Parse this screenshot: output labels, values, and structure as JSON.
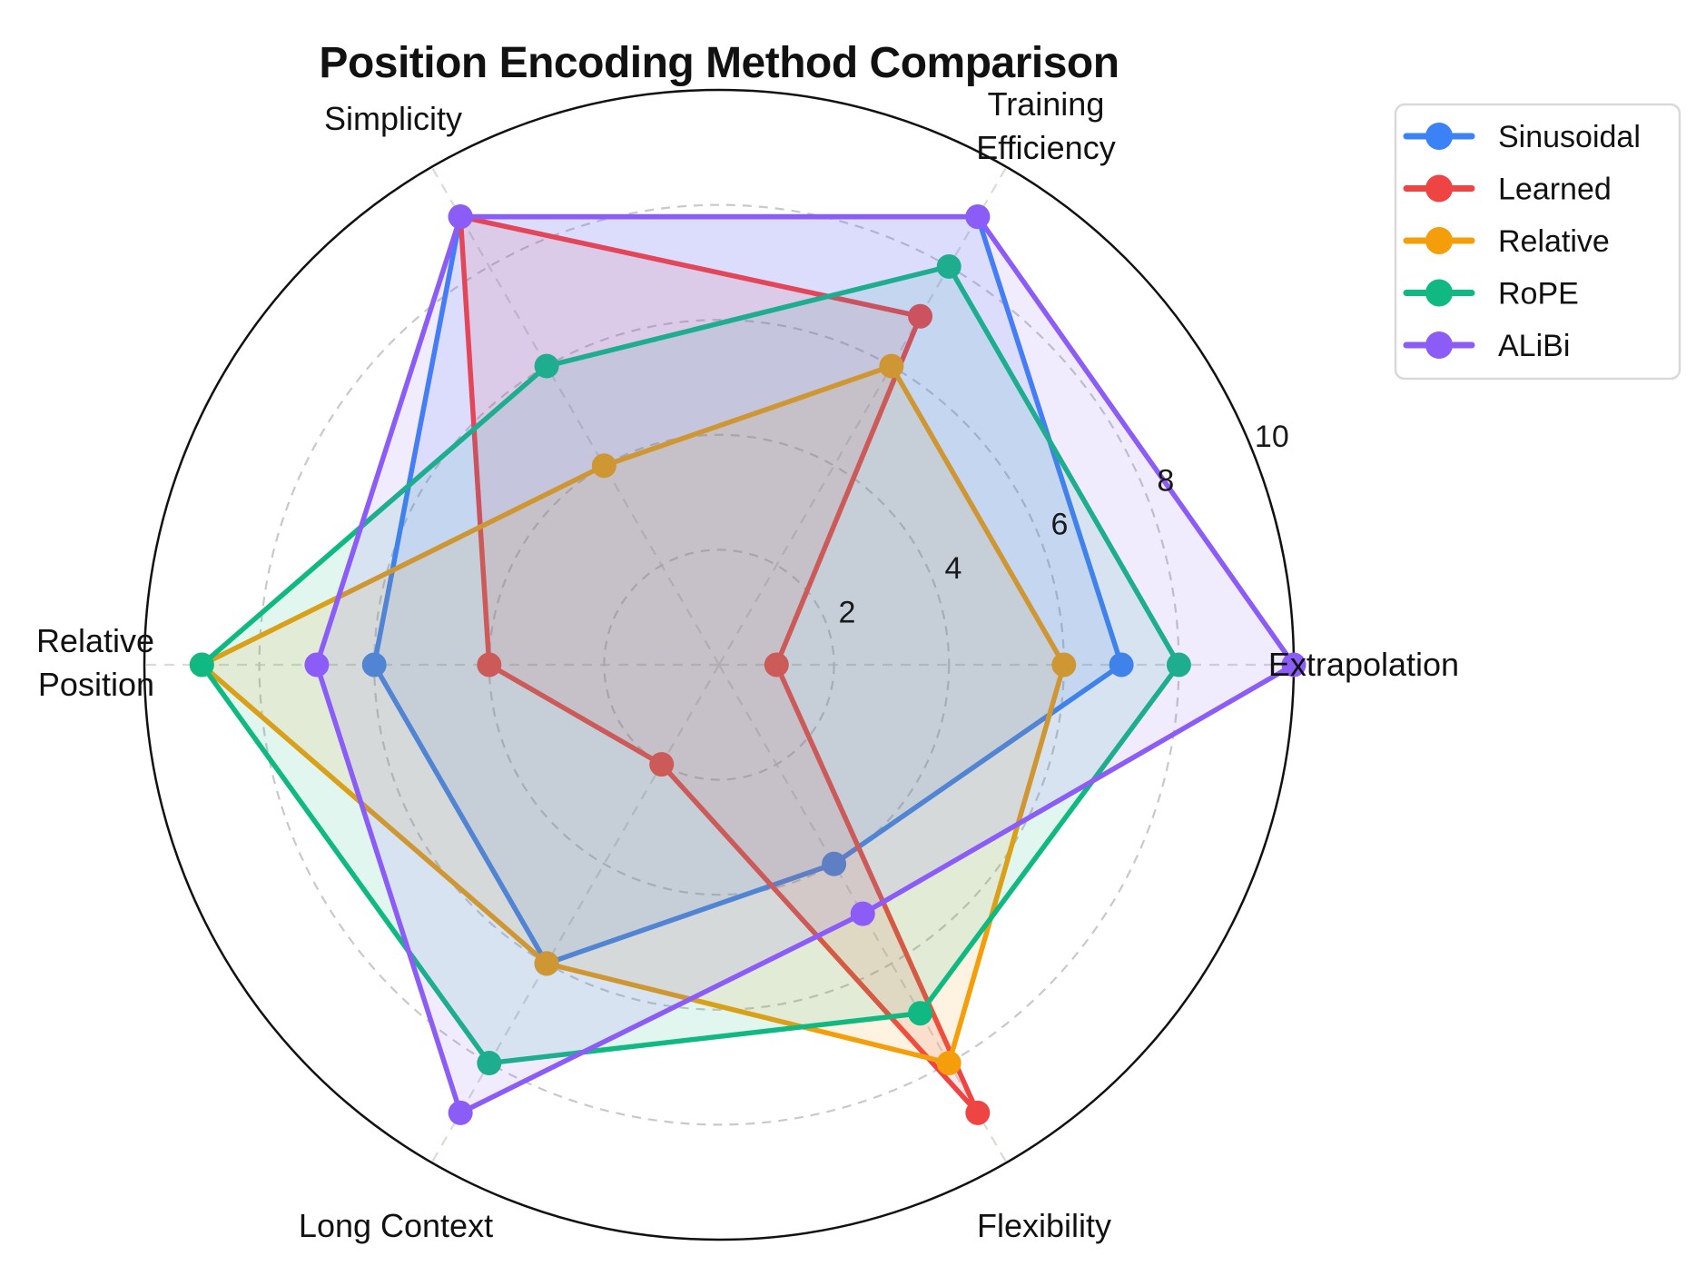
{
  "page": {
    "background": "#ffffff"
  },
  "chart_data": {
    "type": "radar",
    "title": "Position Encoding Method Comparison",
    "axes": [
      {
        "label": "Extrapolation",
        "angle_deg": 0,
        "lines": [
          "Extrapolation"
        ]
      },
      {
        "label": "Training Efficiency",
        "angle_deg": 60,
        "lines": [
          "Training",
          "Efficiency"
        ]
      },
      {
        "label": "Simplicity",
        "angle_deg": 120,
        "lines": [
          "Simplicity"
        ]
      },
      {
        "label": "Relative Position",
        "angle_deg": 180,
        "lines": [
          "Relative",
          "Position"
        ]
      },
      {
        "label": "Long Context",
        "angle_deg": 240,
        "lines": [
          "Long Context"
        ]
      },
      {
        "label": "Flexibility",
        "angle_deg": 300,
        "lines": [
          "Flexibility"
        ]
      }
    ],
    "r_ticks": [
      2,
      4,
      6,
      8,
      10
    ],
    "r_max": 10,
    "grid": {
      "dashed_circles": [
        2,
        4,
        6,
        8
      ],
      "outer_circle": 10,
      "tick_label_angle_deg": 22.5,
      "grid_on": true
    },
    "series": [
      {
        "name": "Sinusoidal",
        "color": "#3b82f6",
        "values": [
          7,
          9,
          9,
          6,
          6,
          4
        ]
      },
      {
        "name": "Learned",
        "color": "#ef4444",
        "values": [
          1,
          7,
          9,
          4,
          2,
          9
        ]
      },
      {
        "name": "Relative",
        "color": "#f59e0b",
        "values": [
          6,
          6,
          4,
          9,
          6,
          8
        ]
      },
      {
        "name": "RoPE",
        "color": "#10b981",
        "values": [
          8,
          8,
          6,
          9,
          8,
          7
        ]
      },
      {
        "name": "ALiBi",
        "color": "#8b5cf6",
        "values": [
          10,
          9,
          9,
          7,
          9,
          5
        ]
      }
    ],
    "legend": {
      "position": "top-right",
      "items": [
        "Sinusoidal",
        "Learned",
        "Relative",
        "RoPE",
        "ALiBi"
      ]
    },
    "style": {
      "background": "#ffffff",
      "outer_circle_color": "#111111",
      "grid_color": "#c9c9c9",
      "spoke_color": "#d6ddd4",
      "text_color": "#1a1a1a",
      "fill_opacity": 0.12,
      "line_width": 5.5,
      "marker_radius": 13.5
    }
  }
}
